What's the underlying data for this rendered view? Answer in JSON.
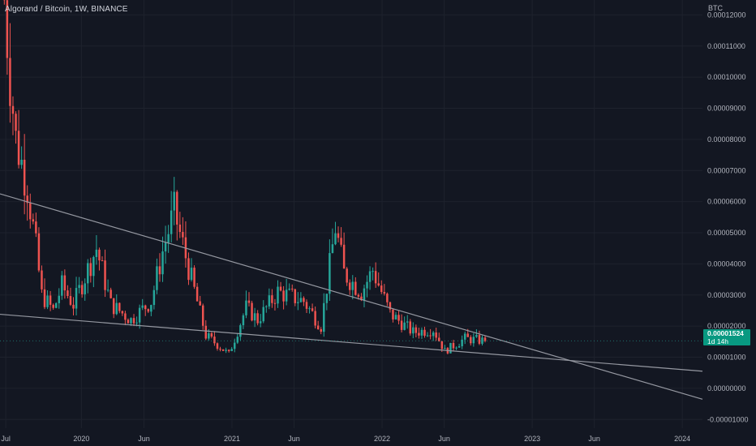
{
  "header": {
    "title": "Algorand / Bitcoin, 1W, BINANCE"
  },
  "price_badge": {
    "price": "0.00001524",
    "countdown": "1d 14h"
  },
  "colors": {
    "up": "#26a69a",
    "down": "#ef5350",
    "trendline": "#9598a1",
    "background": "#131722",
    "grid": "#1e222d",
    "badge": "#089981"
  },
  "chart_data": {
    "type": "candlestick",
    "title": "Algorand / Bitcoin, 1W, BINANCE",
    "y_unit": "BTC",
    "y_ticks": [
      -1e-05,
      0,
      1e-05,
      2e-05,
      3e-05,
      4e-05,
      5e-05,
      6e-05,
      7e-05,
      8e-05,
      9e-05,
      0.0001,
      0.00011,
      0.00012
    ],
    "y_tick_labels": [
      "-0.00001000",
      "0.00000000",
      "0.00001000",
      "0.00002000",
      "0.00003000",
      "0.00004000",
      "0.00005000",
      "0.00006000",
      "0.00007000",
      "0.00008000",
      "0.00009000",
      "0.00010000",
      "0.00011000",
      "0.00012000"
    ],
    "ylim": [
      -1.28e-05,
      0.0001248
    ],
    "x_ticks": [
      {
        "label": "Jul",
        "date": "2019-07-01"
      },
      {
        "label": "2020",
        "date": "2020-01-01"
      },
      {
        "label": "Jun",
        "date": "2020-06-01"
      },
      {
        "label": "2021",
        "date": "2021-01-01"
      },
      {
        "label": "Jun",
        "date": "2021-06-01"
      },
      {
        "label": "2022",
        "date": "2022-01-01"
      },
      {
        "label": "Jun",
        "date": "2022-06-01"
      },
      {
        "label": "2023",
        "date": "2023-01-01"
      },
      {
        "label": "Jun",
        "date": "2023-06-01"
      },
      {
        "label": "2024",
        "date": "2024-01-01"
      }
    ],
    "xlim": [
      "2019-06-17",
      "2024-02-19"
    ],
    "grid": true,
    "last_price": 1.524e-05,
    "keypoints": [
      {
        "date": "2019-06-24",
        "close": 0.000125
      },
      {
        "date": "2019-07-08",
        "close": 0.0001
      },
      {
        "date": "2019-07-22",
        "close": 8e-05
      },
      {
        "date": "2019-08-19",
        "close": 6.5e-05
      },
      {
        "date": "2019-09-09",
        "close": 4.5e-05
      },
      {
        "date": "2019-09-23",
        "close": 3e-05
      },
      {
        "date": "2019-10-21",
        "close": 2.5e-05
      },
      {
        "date": "2019-11-11",
        "close": 3.3e-05
      },
      {
        "date": "2019-12-09",
        "close": 2.7e-05
      },
      {
        "date": "2020-02-03",
        "close": 4.5e-05
      },
      {
        "date": "2020-03-09",
        "close": 2.7e-05
      },
      {
        "date": "2020-04-27",
        "close": 2.2e-05
      },
      {
        "date": "2020-06-15",
        "close": 2.8e-05
      },
      {
        "date": "2020-07-13",
        "close": 4.4e-05
      },
      {
        "date": "2020-08-10",
        "close": 5.7e-05
      },
      {
        "date": "2020-09-21",
        "close": 3.5e-05
      },
      {
        "date": "2020-10-26",
        "close": 1.7e-05
      },
      {
        "date": "2020-12-21",
        "close": 1.1e-05
      },
      {
        "date": "2021-02-01",
        "close": 2.6e-05
      },
      {
        "date": "2021-03-01",
        "close": 2.2e-05
      },
      {
        "date": "2021-04-19",
        "close": 3.1e-05
      },
      {
        "date": "2021-06-21",
        "close": 2.8e-05
      },
      {
        "date": "2021-08-02",
        "close": 2e-05
      },
      {
        "date": "2021-09-06",
        "close": 5.2e-05
      },
      {
        "date": "2021-09-27",
        "close": 3.7e-05
      },
      {
        "date": "2021-11-08",
        "close": 3.1e-05
      },
      {
        "date": "2021-12-06",
        "close": 3.8e-05
      },
      {
        "date": "2022-01-17",
        "close": 2.4e-05
      },
      {
        "date": "2022-03-14",
        "close": 1.8e-05
      },
      {
        "date": "2022-05-02",
        "close": 1.9e-05
      },
      {
        "date": "2022-05-30",
        "close": 1.2e-05
      },
      {
        "date": "2022-07-18",
        "close": 1.6e-05
      },
      {
        "date": "2022-09-05",
        "close": 1.52e-05
      }
    ],
    "trendlines": [
      {
        "from": {
          "date": "2019-06-17",
          "value": 6.25e-05
        },
        "to": {
          "date": "2024-02-19",
          "value": -3.5e-06
        }
      },
      {
        "from": {
          "date": "2019-06-17",
          "value": 2.38e-05
        },
        "to": {
          "date": "2024-02-19",
          "value": 5.5e-06
        }
      }
    ]
  }
}
